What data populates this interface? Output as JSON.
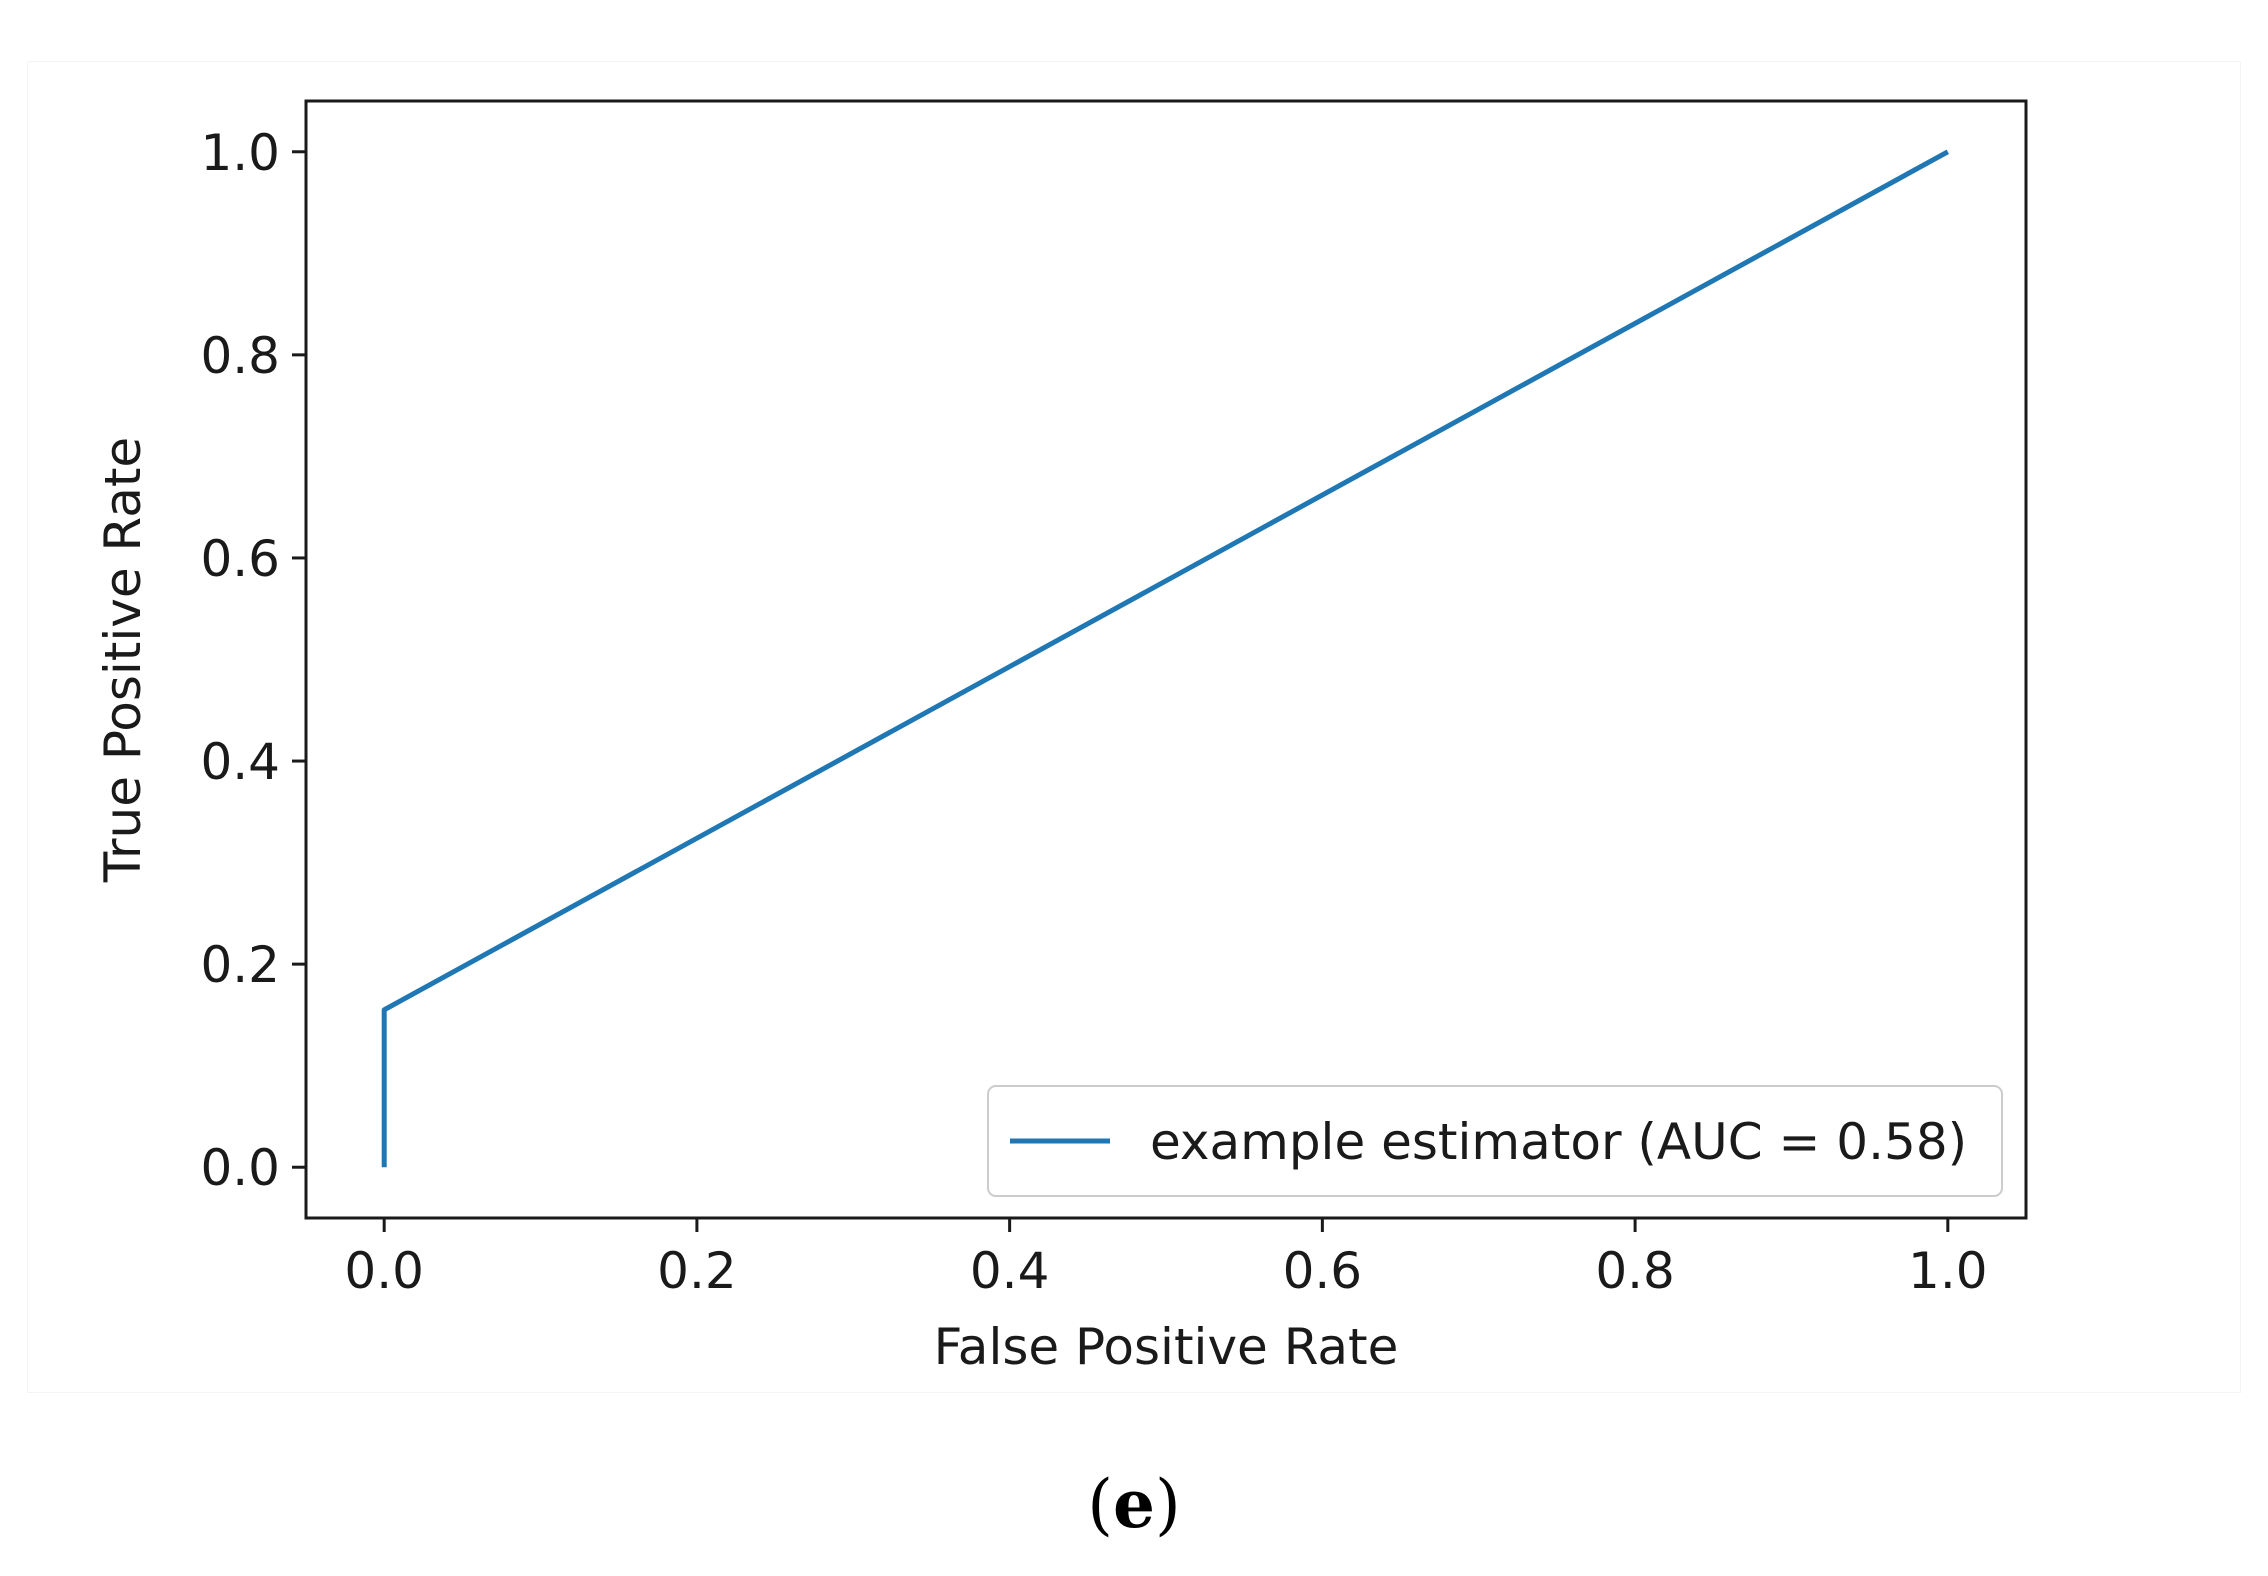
{
  "chart_data": {
    "type": "line",
    "title": "",
    "xlabel": "False Positive Rate",
    "ylabel": "True Positive Rate",
    "xlim": [
      -0.05,
      1.05
    ],
    "ylim": [
      -0.05,
      1.05
    ],
    "xticks": [
      "0.0",
      "0.2",
      "0.4",
      "0.6",
      "0.8",
      "1.0"
    ],
    "yticks": [
      "0.0",
      "0.2",
      "0.4",
      "0.6",
      "0.8",
      "1.0"
    ],
    "grid": false,
    "legend_position": "lower-right",
    "series": [
      {
        "name": "example estimator (AUC = 0.58)",
        "color": "#1f77b4",
        "x": [
          0.0,
          0.0,
          1.0
        ],
        "y": [
          0.0,
          0.155,
          1.0
        ]
      }
    ]
  },
  "caption": {
    "open": "(",
    "letter": "e",
    "close": ")"
  }
}
